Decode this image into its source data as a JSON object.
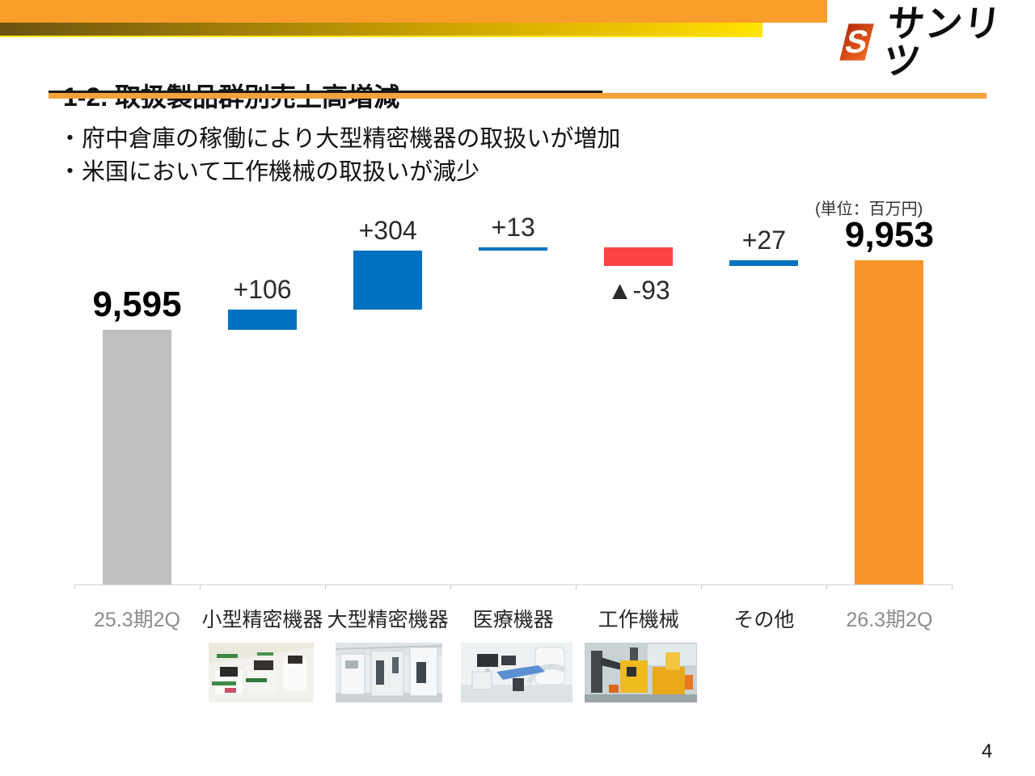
{
  "header": {
    "logo_text": "サンリツ",
    "logo_icon": "sanritsu-s-bolt-icon",
    "banner_color": "#FA9D2B"
  },
  "title": "1-2. 取扱製品群別売上高増減",
  "bullets": [
    "・府中倉庫の稼働により大型精密機器の取扱いが増加",
    "・米国において工作機械の取扱いが減少"
  ],
  "unit_label": "(単位：百万円)",
  "page_number": "4",
  "colors": {
    "bar_start_gray": "#BFBFBF",
    "bar_increase_blue": "#0070C0",
    "bar_decrease_red": "#FC4343",
    "bar_end_orange": "#F8942A",
    "accent_underline_orange": "#F2A23C"
  },
  "chart_data": {
    "type": "bar",
    "subtype": "waterfall",
    "title": "",
    "unit": "百万円",
    "categories": [
      "25.3期2Q",
      "小型精密機器",
      "大型精密機器",
      "医療機器",
      "工作機械",
      "その他",
      "26.3期2Q"
    ],
    "axis_visible_value_range": [
      8284,
      10100
    ],
    "gridlines": false,
    "legend": false,
    "bars": [
      {
        "name": "bar-25-3-2q",
        "category": "25.3期2Q",
        "kind": "total",
        "value": 9595,
        "label": "9,595",
        "color": "#BFBFBF",
        "category_color": "#8C8C8C"
      },
      {
        "name": "bar-small-precision",
        "category": "小型精密機器",
        "kind": "delta",
        "delta": 106,
        "label": "+106",
        "color": "#0070C0",
        "category_color": "#262626"
      },
      {
        "name": "bar-large-precision",
        "category": "大型精密機器",
        "kind": "delta",
        "delta": 304,
        "label": "+304",
        "color": "#0070C0",
        "category_color": "#262626"
      },
      {
        "name": "bar-medical",
        "category": "医療機器",
        "kind": "delta",
        "delta": 13,
        "label": "+13",
        "color": "#0070C0",
        "category_color": "#262626"
      },
      {
        "name": "bar-machine-tools",
        "category": "工作機械",
        "kind": "delta",
        "delta": -93,
        "label": "▲-93",
        "color": "#FC4343",
        "category_color": "#262626"
      },
      {
        "name": "bar-others",
        "category": "その他",
        "kind": "delta",
        "delta": 27,
        "label": "+27",
        "color": "#0070C0",
        "category_color": "#262626"
      },
      {
        "name": "bar-26-3-2q",
        "category": "26.3期2Q",
        "kind": "total",
        "value": 9953,
        "label": "9,953",
        "color": "#F8942A",
        "category_color": "#8C8C8C"
      }
    ]
  },
  "photos": [
    "photo-small-precision-equipment",
    "photo-large-precision-equipment",
    "photo-medical-equipment",
    "photo-machine-tools"
  ]
}
